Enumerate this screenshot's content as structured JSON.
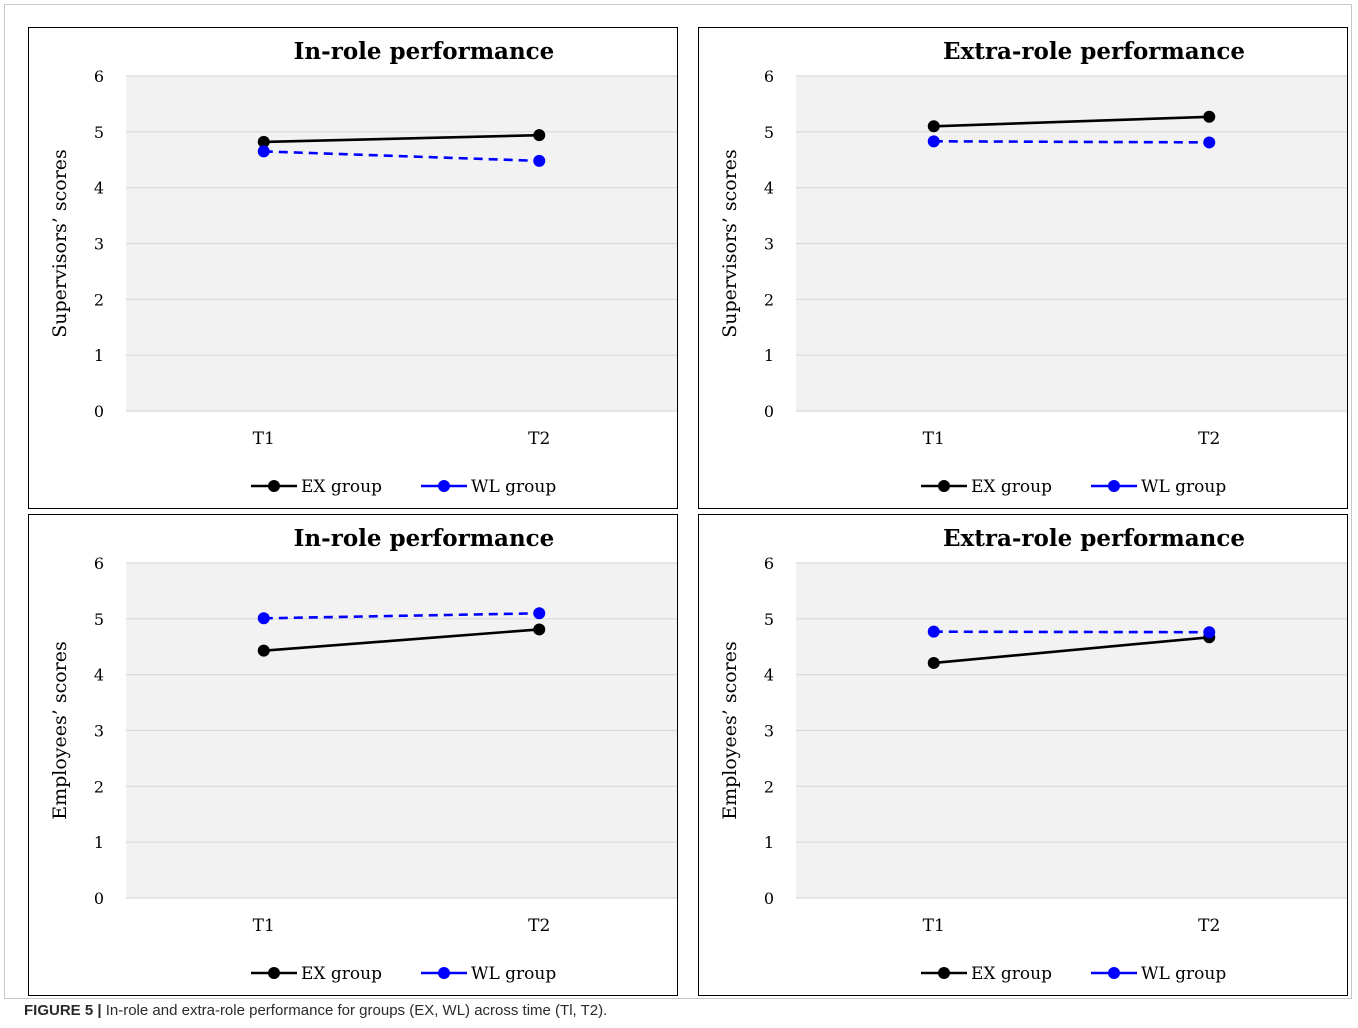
{
  "figure": {
    "label": "FIGURE 5 |",
    "caption": "In-role and extra-role performance for groups (EX, WL) across time (Tl, T2)."
  },
  "chart_data": [
    {
      "type": "line",
      "title": "In-role performance",
      "ylabel": "Supervisors’ scores",
      "xlabel": "",
      "categories": [
        "T1",
        "T2"
      ],
      "ylim": [
        0,
        6
      ],
      "yticks": [
        0,
        1,
        2,
        3,
        4,
        5,
        6
      ],
      "grid": true,
      "legend": "bottom",
      "series": [
        {
          "name": "EX group",
          "values": [
            4.82,
            4.94
          ],
          "color": "#000000",
          "dash": false
        },
        {
          "name": "WL group",
          "values": [
            4.65,
            4.48
          ],
          "color": "#0000ff",
          "dash": true
        }
      ]
    },
    {
      "type": "line",
      "title": "Extra-role performance",
      "ylabel": "Supervisors’ scores",
      "xlabel": "",
      "categories": [
        "T1",
        "T2"
      ],
      "ylim": [
        0,
        6
      ],
      "yticks": [
        0,
        1,
        2,
        3,
        4,
        5,
        6
      ],
      "grid": true,
      "legend": "bottom",
      "series": [
        {
          "name": "EX group",
          "values": [
            5.1,
            5.27
          ],
          "color": "#000000",
          "dash": false
        },
        {
          "name": "WL group",
          "values": [
            4.83,
            4.81
          ],
          "color": "#0000ff",
          "dash": true
        }
      ]
    },
    {
      "type": "line",
      "title": "In-role performance",
      "ylabel": "Employees’ scores",
      "xlabel": "",
      "categories": [
        "T1",
        "T2"
      ],
      "ylim": [
        0,
        6
      ],
      "yticks": [
        0,
        1,
        2,
        3,
        4,
        5,
        6
      ],
      "grid": true,
      "legend": "bottom",
      "series": [
        {
          "name": "EX group",
          "values": [
            4.43,
            4.81
          ],
          "color": "#000000",
          "dash": false
        },
        {
          "name": "WL group",
          "values": [
            5.01,
            5.1
          ],
          "color": "#0000ff",
          "dash": true
        }
      ]
    },
    {
      "type": "line",
      "title": "Extra-role performance",
      "ylabel": "Employees’ scores",
      "xlabel": "",
      "categories": [
        "T1",
        "T2"
      ],
      "ylim": [
        0,
        6
      ],
      "yticks": [
        0,
        1,
        2,
        3,
        4,
        5,
        6
      ],
      "grid": true,
      "legend": "bottom",
      "series": [
        {
          "name": "EX group",
          "values": [
            4.21,
            4.67
          ],
          "color": "#000000",
          "dash": false
        },
        {
          "name": "WL group",
          "values": [
            4.77,
            4.76
          ],
          "color": "#0000ff",
          "dash": true
        }
      ]
    }
  ]
}
